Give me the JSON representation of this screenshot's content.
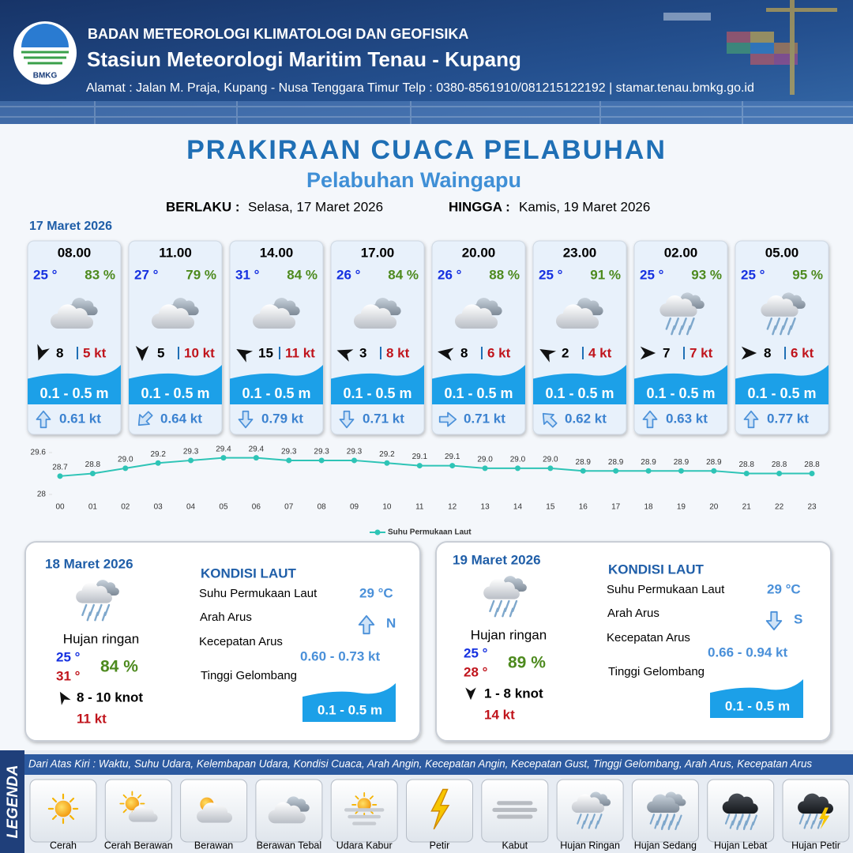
{
  "header": {
    "logo_text": "BMKG",
    "agency": "BADAN METEOROLOGI KLIMATOLOGI DAN GEOFISIKA",
    "station": "Stasiun Meteorologi Maritim Tenau - Kupang",
    "address": "Alamat : Jalan M. Praja, Kupang - Nusa Tenggara Timur Telp : 0380-8561910/081215122192  | stamar.tenau.bmkg.go.id"
  },
  "title": "PRAKIRAAN CUACA PELABUHAN",
  "subtitle": "Pelabuhan Waingapu",
  "validity": {
    "from_label": "BERLAKU :",
    "from": "Selasa, 17 Maret 2026",
    "to_label": "HINGGA :",
    "to": "Kamis, 19 Maret 2026"
  },
  "today": {
    "date": "17 Maret 2026",
    "forecasts": [
      {
        "time": "08.00",
        "temp": "25 °",
        "humidity": "83 %",
        "condition": "berawan-tebal",
        "wind_angle": 200,
        "wind": "8",
        "gust": "5 kt",
        "wave": "0.1 - 0.5 m",
        "current_angle": 0,
        "current": "0.61 kt"
      },
      {
        "time": "11.00",
        "temp": "27 °",
        "humidity": "79 %",
        "condition": "berawan-tebal",
        "wind_angle": 180,
        "wind": "5",
        "gust": "10 kt",
        "wave": "0.1 - 0.5 m",
        "current_angle": 225,
        "current": "0.64 kt"
      },
      {
        "time": "14.00",
        "temp": "31 °",
        "humidity": "84 %",
        "condition": "berawan-tebal",
        "wind_angle": 300,
        "wind": "15",
        "gust": "11 kt",
        "wave": "0.1 - 0.5 m",
        "current_angle": 180,
        "current": "0.79 kt"
      },
      {
        "time": "17.00",
        "temp": "26 °",
        "humidity": "84 %",
        "condition": "berawan-tebal",
        "wind_angle": 290,
        "wind": "3",
        "gust": "8 kt",
        "wave": "0.1 - 0.5 m",
        "current_angle": 180,
        "current": "0.71 kt"
      },
      {
        "time": "20.00",
        "temp": "26 °",
        "humidity": "88 %",
        "condition": "berawan-tebal",
        "wind_angle": 280,
        "wind": "8",
        "gust": "6 kt",
        "wave": "0.1 - 0.5 m",
        "current_angle": 90,
        "current": "0.71 kt"
      },
      {
        "time": "23.00",
        "temp": "25 °",
        "humidity": "91 %",
        "condition": "berawan-tebal",
        "wind_angle": 300,
        "wind": "2",
        "gust": "4 kt",
        "wave": "0.1 - 0.5 m",
        "current_angle": 315,
        "current": "0.62 kt"
      },
      {
        "time": "02.00",
        "temp": "25 °",
        "humidity": "93 %",
        "condition": "hujan-ringan",
        "wind_angle": 90,
        "wind": "7",
        "gust": "7 kt",
        "wave": "0.1 - 0.5 m",
        "current_angle": 0,
        "current": "0.63 kt"
      },
      {
        "time": "05.00",
        "temp": "25 °",
        "humidity": "95 %",
        "condition": "hujan-ringan",
        "wind_angle": 90,
        "wind": "8",
        "gust": "6 kt",
        "wave": "0.1 - 0.5 m",
        "current_angle": 0,
        "current": "0.77 kt"
      }
    ]
  },
  "chart_data": {
    "type": "line",
    "categories": [
      "00",
      "01",
      "02",
      "03",
      "04",
      "05",
      "06",
      "07",
      "08",
      "09",
      "10",
      "11",
      "12",
      "13",
      "14",
      "15",
      "16",
      "17",
      "18",
      "19",
      "20",
      "21",
      "22",
      "23"
    ],
    "series": [
      {
        "name": "Suhu Permukaan Laut",
        "color": "#2ec4b6",
        "values": [
          28.7,
          28.8,
          29.0,
          29.2,
          29.3,
          29.4,
          29.4,
          29.3,
          29.3,
          29.3,
          29.2,
          29.1,
          29.1,
          29.0,
          29.0,
          29.0,
          28.9,
          28.9,
          28.9,
          28.9,
          28.9,
          28.8,
          28.8,
          28.8
        ],
        "value_labels": [
          "28.7",
          "28.8",
          "29.0",
          "29.2",
          "29.3",
          "29.4",
          "29.4",
          "29.3",
          "29.3",
          "29.3",
          "29.2",
          "29.1",
          "29.1",
          "29.0",
          "29.0",
          "29.0",
          "28.9",
          "28.9",
          "28.9",
          "28.9",
          "28.9",
          "28.8",
          "28.8",
          "28.8"
        ]
      }
    ],
    "ylim": [
      28,
      29.6
    ],
    "yticks": [
      28,
      29.6
    ],
    "legend": "bottom"
  },
  "days": [
    {
      "date": "18 Maret 2026",
      "condition": "hujan-ringan",
      "condition_text": "Hujan ringan",
      "temp_min": "25 °",
      "temp_max": "31 °",
      "humidity": "84 %",
      "wind_angle": 330,
      "wind": "8  - 10 knot",
      "gust": "11 kt",
      "sea_title": "KONDISI LAUT",
      "sst_label": "Suhu Permukaan Laut",
      "sst": "29 °C",
      "current_dir_label": "Arah Arus",
      "current_angle": 0,
      "current_dir": "N",
      "current_speed_label": "Kecepatan Arus",
      "current_speed": "0.60 - 0.73 kt",
      "wave_label": "Tinggi Gelombang",
      "wave": "0.1 - 0.5 m"
    },
    {
      "date": "19 Maret 2026",
      "condition": "hujan-ringan",
      "condition_text": "Hujan ringan",
      "temp_min": "25 °",
      "temp_max": "28 °",
      "humidity": "89 %",
      "wind_angle": 180,
      "wind": "1  - 8 knot",
      "gust": "14 kt",
      "sea_title": "KONDISI LAUT",
      "sst_label": "Suhu Permukaan Laut",
      "sst": "29 °C",
      "current_dir_label": "Arah Arus",
      "current_angle": 180,
      "current_dir": "S",
      "current_speed_label": "Kecepatan Arus",
      "current_speed": "0.66 - 0.94 kt",
      "wave_label": "Tinggi Gelombang",
      "wave": "0.1 - 0.5 m"
    }
  ],
  "legend": {
    "title": "LEGENDA",
    "description": "Dari Atas Kiri : Waktu, Suhu Udara, Kelembapan Udara, Kondisi Cuaca, Arah Angin, Kecepatan Angin, Kecepatan Gust, Tinggi Gelombang, Arah Arus, Kecepatan Arus",
    "items": [
      {
        "name": "Cerah",
        "icon": "cerah"
      },
      {
        "name": "Cerah Berawan",
        "icon": "cerah-berawan"
      },
      {
        "name": "Berawan",
        "icon": "berawan"
      },
      {
        "name": "Berawan Tebal",
        "icon": "berawan-tebal"
      },
      {
        "name": "Udara Kabur",
        "icon": "udara-kabur"
      },
      {
        "name": "Petir",
        "icon": "petir"
      },
      {
        "name": "Kabut",
        "icon": "kabut"
      },
      {
        "name": "Hujan Ringan",
        "icon": "hujan-ringan"
      },
      {
        "name": "Hujan Sedang",
        "icon": "hujan-sedang"
      },
      {
        "name": "Hujan Lebat",
        "icon": "hujan-lebat"
      },
      {
        "name": "Hujan Petir",
        "icon": "hujan-petir"
      }
    ]
  }
}
